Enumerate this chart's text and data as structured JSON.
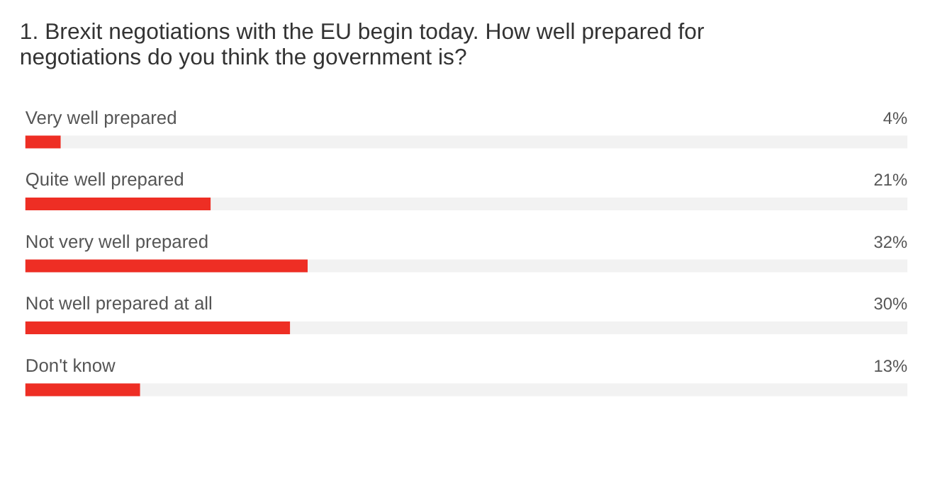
{
  "chart_data": {
    "type": "bar",
    "orientation": "horizontal",
    "title": "1.  Brexit negotiations with the EU begin today. How well prepared for negotiations do you think the government is?",
    "categories": [
      "Very well prepared",
      "Quite well prepared",
      "Not very well prepared",
      "Not well prepared at all",
      "Don't know"
    ],
    "values": [
      4,
      21,
      32,
      30,
      13
    ],
    "value_labels": [
      "4%",
      "21%",
      "32%",
      "30%",
      "13%"
    ],
    "color": "#ee2e24",
    "xlim": [
      0,
      100
    ]
  }
}
